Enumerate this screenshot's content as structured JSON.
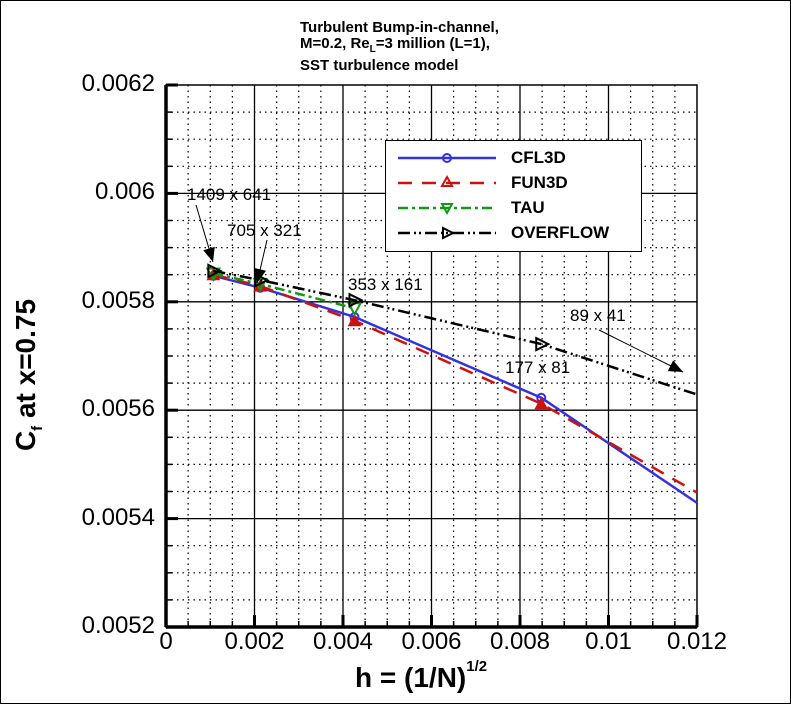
{
  "chart_data": {
    "type": "line",
    "title": "Turbulent Bump-in-channel, M=0.2, Re_L=3 million (L=1), SST turbulence model",
    "title_lines": [
      "Turbulent Bump-in-channel,",
      "M=0.2, Re =3 million (L=1),",
      "SST turbulence model"
    ],
    "xlabel": "h = (1/N)^1/2",
    "xlabel_main": "h = (1/N)",
    "xlabel_sup": "1/2",
    "ylabel": "C_f at x=0.75",
    "ylabel_main": "C",
    "ylabel_sub": "f",
    "ylabel_rest": " at x=0.75",
    "xlim": [
      0,
      0.012
    ],
    "ylim": [
      0.0052,
      0.0062
    ],
    "x_ticks": [
      "0",
      "0.002",
      "0.004",
      "0.006",
      "0.008",
      "0.01",
      "0.012"
    ],
    "y_ticks": [
      "0.0062",
      "0.006",
      "0.0058",
      "0.0056",
      "0.0054",
      "0.0052"
    ],
    "grid": true,
    "legend_position": "upper right (inside)",
    "series": [
      {
        "name": "CFL3D",
        "color": "#3333dd",
        "linestyle": "solid",
        "marker": "circle",
        "x": [
          0.00107,
          0.00213,
          0.00426,
          0.00848,
          0.012
        ],
        "y": [
          0.005848,
          0.005826,
          0.005772,
          0.005623,
          0.005429
        ]
      },
      {
        "name": "FUN3D",
        "color": "#cc1111",
        "linestyle": "dashed",
        "marker": "triangle-up",
        "x": [
          0.00107,
          0.00213,
          0.00426,
          0.00848,
          0.012
        ],
        "y": [
          0.00585,
          0.005829,
          0.005765,
          0.005612,
          0.005448
        ]
      },
      {
        "name": "TAU",
        "color": "#119911",
        "linestyle": "dash-dot",
        "marker": "triangle-down",
        "x": [
          0.00107,
          0.00213,
          0.00426
        ],
        "y": [
          0.005852,
          0.005833,
          0.005788
        ]
      },
      {
        "name": "OVERFLOW",
        "color": "#000000",
        "linestyle": "dash-dot-dot",
        "marker": "triangle-right",
        "x": [
          0.00107,
          0.00213,
          0.00426,
          0.00848,
          0.012
        ],
        "y": [
          0.005857,
          0.00584,
          0.005803,
          0.005722,
          0.005629
        ]
      }
    ],
    "annotations": [
      {
        "text": "1409 x 641",
        "x": 0.00107
      },
      {
        "text": "705 x 321",
        "x": 0.00213
      },
      {
        "text": "353 x 161",
        "x": 0.00426
      },
      {
        "text": "177 x 81",
        "x": 0.00848
      },
      {
        "text": "89 x 41",
        "x": 0.01194
      }
    ]
  }
}
